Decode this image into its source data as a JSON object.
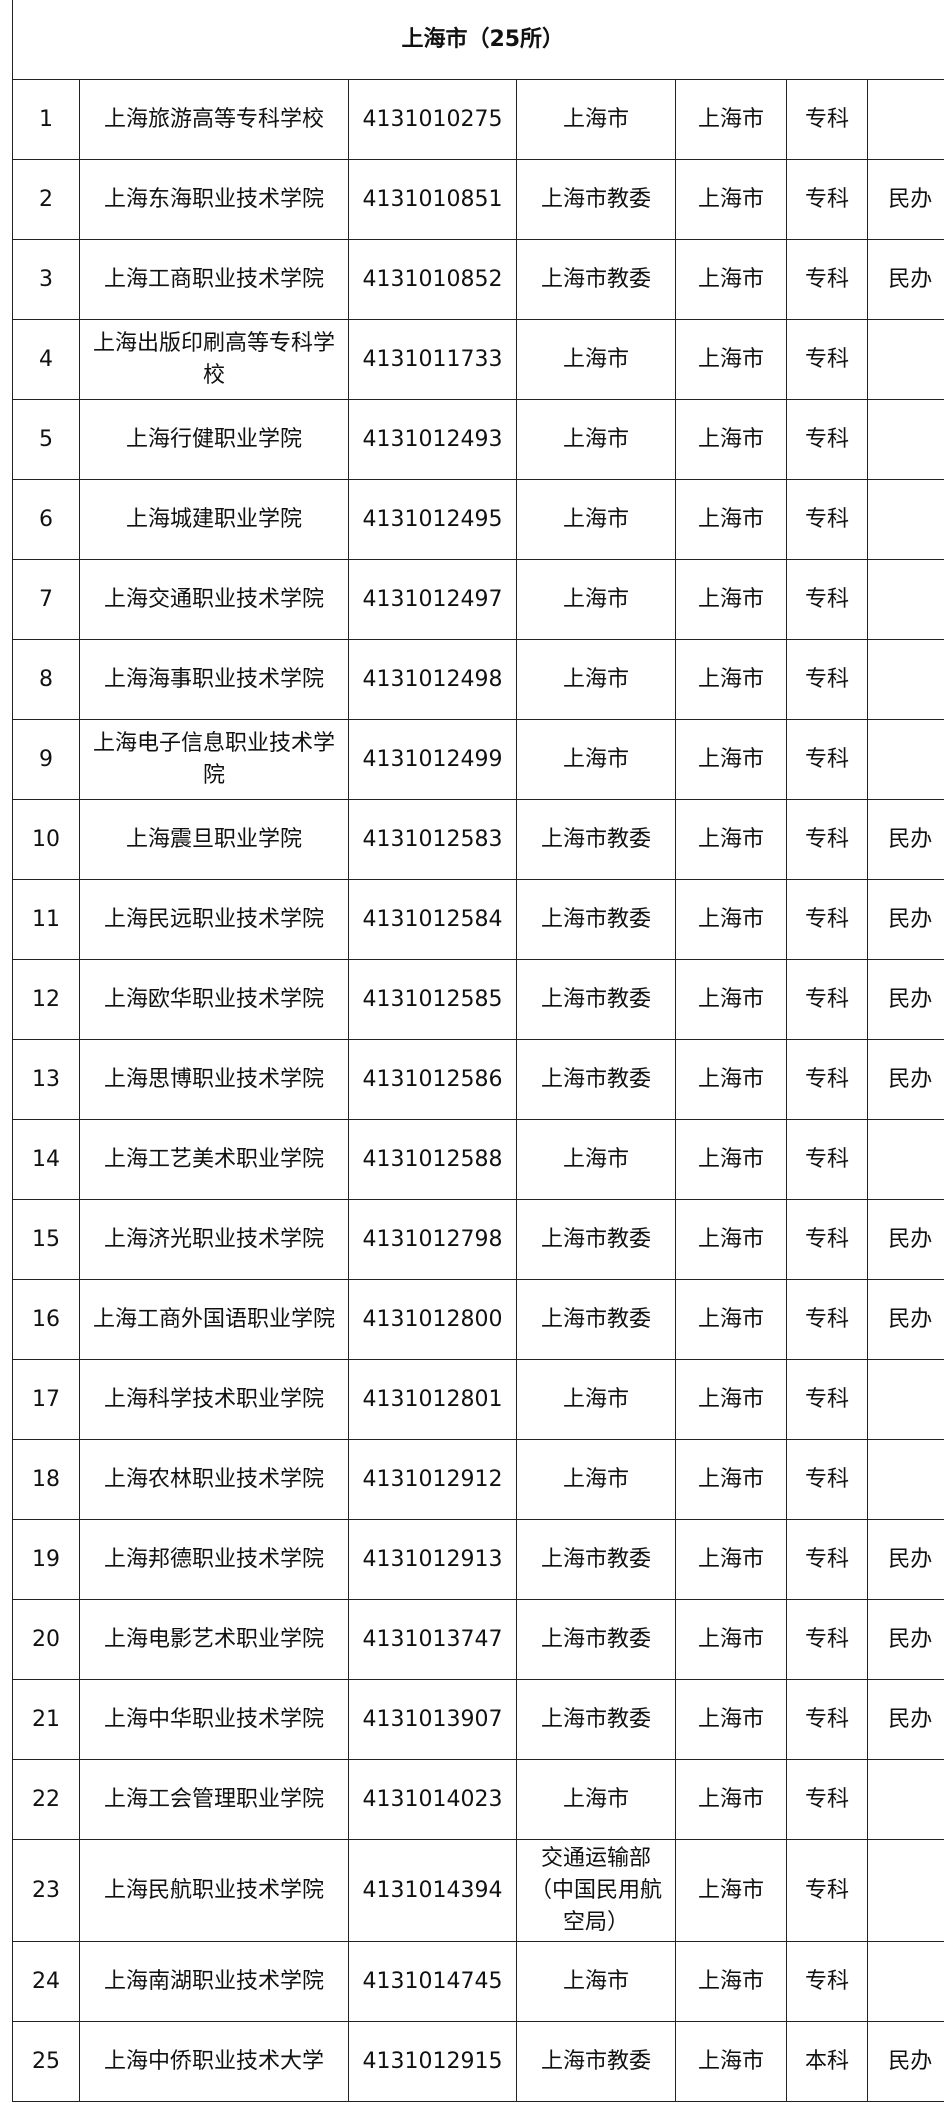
{
  "title": "上海市（25所）",
  "rows": [
    {
      "no": "1",
      "name": "上海旅游高等专科学校",
      "code": "4131010275",
      "authority": "上海市",
      "location": "上海市",
      "level": "专科",
      "note": ""
    },
    {
      "no": "2",
      "name": "上海东海职业技术学院",
      "code": "4131010851",
      "authority": "上海市教委",
      "location": "上海市",
      "level": "专科",
      "note": "民办"
    },
    {
      "no": "3",
      "name": "上海工商职业技术学院",
      "code": "4131010852",
      "authority": "上海市教委",
      "location": "上海市",
      "level": "专科",
      "note": "民办"
    },
    {
      "no": "4",
      "name": "上海出版印刷高等专科学校",
      "code": "4131011733",
      "authority": "上海市",
      "location": "上海市",
      "level": "专科",
      "note": ""
    },
    {
      "no": "5",
      "name": "上海行健职业学院",
      "code": "4131012493",
      "authority": "上海市",
      "location": "上海市",
      "level": "专科",
      "note": ""
    },
    {
      "no": "6",
      "name": "上海城建职业学院",
      "code": "4131012495",
      "authority": "上海市",
      "location": "上海市",
      "level": "专科",
      "note": ""
    },
    {
      "no": "7",
      "name": "上海交通职业技术学院",
      "code": "4131012497",
      "authority": "上海市",
      "location": "上海市",
      "level": "专科",
      "note": ""
    },
    {
      "no": "8",
      "name": "上海海事职业技术学院",
      "code": "4131012498",
      "authority": "上海市",
      "location": "上海市",
      "level": "专科",
      "note": ""
    },
    {
      "no": "9",
      "name": "上海电子信息职业技术学院",
      "code": "4131012499",
      "authority": "上海市",
      "location": "上海市",
      "level": "专科",
      "note": ""
    },
    {
      "no": "10",
      "name": "上海震旦职业学院",
      "code": "4131012583",
      "authority": "上海市教委",
      "location": "上海市",
      "level": "专科",
      "note": "民办"
    },
    {
      "no": "11",
      "name": "上海民远职业技术学院",
      "code": "4131012584",
      "authority": "上海市教委",
      "location": "上海市",
      "level": "专科",
      "note": "民办"
    },
    {
      "no": "12",
      "name": "上海欧华职业技术学院",
      "code": "4131012585",
      "authority": "上海市教委",
      "location": "上海市",
      "level": "专科",
      "note": "民办"
    },
    {
      "no": "13",
      "name": "上海思博职业技术学院",
      "code": "4131012586",
      "authority": "上海市教委",
      "location": "上海市",
      "level": "专科",
      "note": "民办"
    },
    {
      "no": "14",
      "name": "上海工艺美术职业学院",
      "code": "4131012588",
      "authority": "上海市",
      "location": "上海市",
      "level": "专科",
      "note": ""
    },
    {
      "no": "15",
      "name": "上海济光职业技术学院",
      "code": "4131012798",
      "authority": "上海市教委",
      "location": "上海市",
      "level": "专科",
      "note": "民办"
    },
    {
      "no": "16",
      "name": "上海工商外国语职业学院",
      "code": "4131012800",
      "authority": "上海市教委",
      "location": "上海市",
      "level": "专科",
      "note": "民办"
    },
    {
      "no": "17",
      "name": "上海科学技术职业学院",
      "code": "4131012801",
      "authority": "上海市",
      "location": "上海市",
      "level": "专科",
      "note": ""
    },
    {
      "no": "18",
      "name": "上海农林职业技术学院",
      "code": "4131012912",
      "authority": "上海市",
      "location": "上海市",
      "level": "专科",
      "note": ""
    },
    {
      "no": "19",
      "name": "上海邦德职业技术学院",
      "code": "4131012913",
      "authority": "上海市教委",
      "location": "上海市",
      "level": "专科",
      "note": "民办"
    },
    {
      "no": "20",
      "name": "上海电影艺术职业学院",
      "code": "4131013747",
      "authority": "上海市教委",
      "location": "上海市",
      "level": "专科",
      "note": "民办"
    },
    {
      "no": "21",
      "name": "上海中华职业技术学院",
      "code": "4131013907",
      "authority": "上海市教委",
      "location": "上海市",
      "level": "专科",
      "note": "民办"
    },
    {
      "no": "22",
      "name": "上海工会管理职业学院",
      "code": "4131014023",
      "authority": "上海市",
      "location": "上海市",
      "level": "专科",
      "note": ""
    },
    {
      "no": "23",
      "name": "上海民航职业技术学院",
      "code": "4131014394",
      "authority": "交通运输部\n（中国民用航\n空局）",
      "location": "上海市",
      "level": "专科",
      "note": ""
    },
    {
      "no": "24",
      "name": "上海南湖职业技术学院",
      "code": "4131014745",
      "authority": "上海市",
      "location": "上海市",
      "level": "专科",
      "note": ""
    },
    {
      "no": "25",
      "name": "上海中侨职业技术大学",
      "code": "4131012915",
      "authority": "上海市教委",
      "location": "上海市",
      "level": "本科",
      "note": "民办"
    }
  ]
}
